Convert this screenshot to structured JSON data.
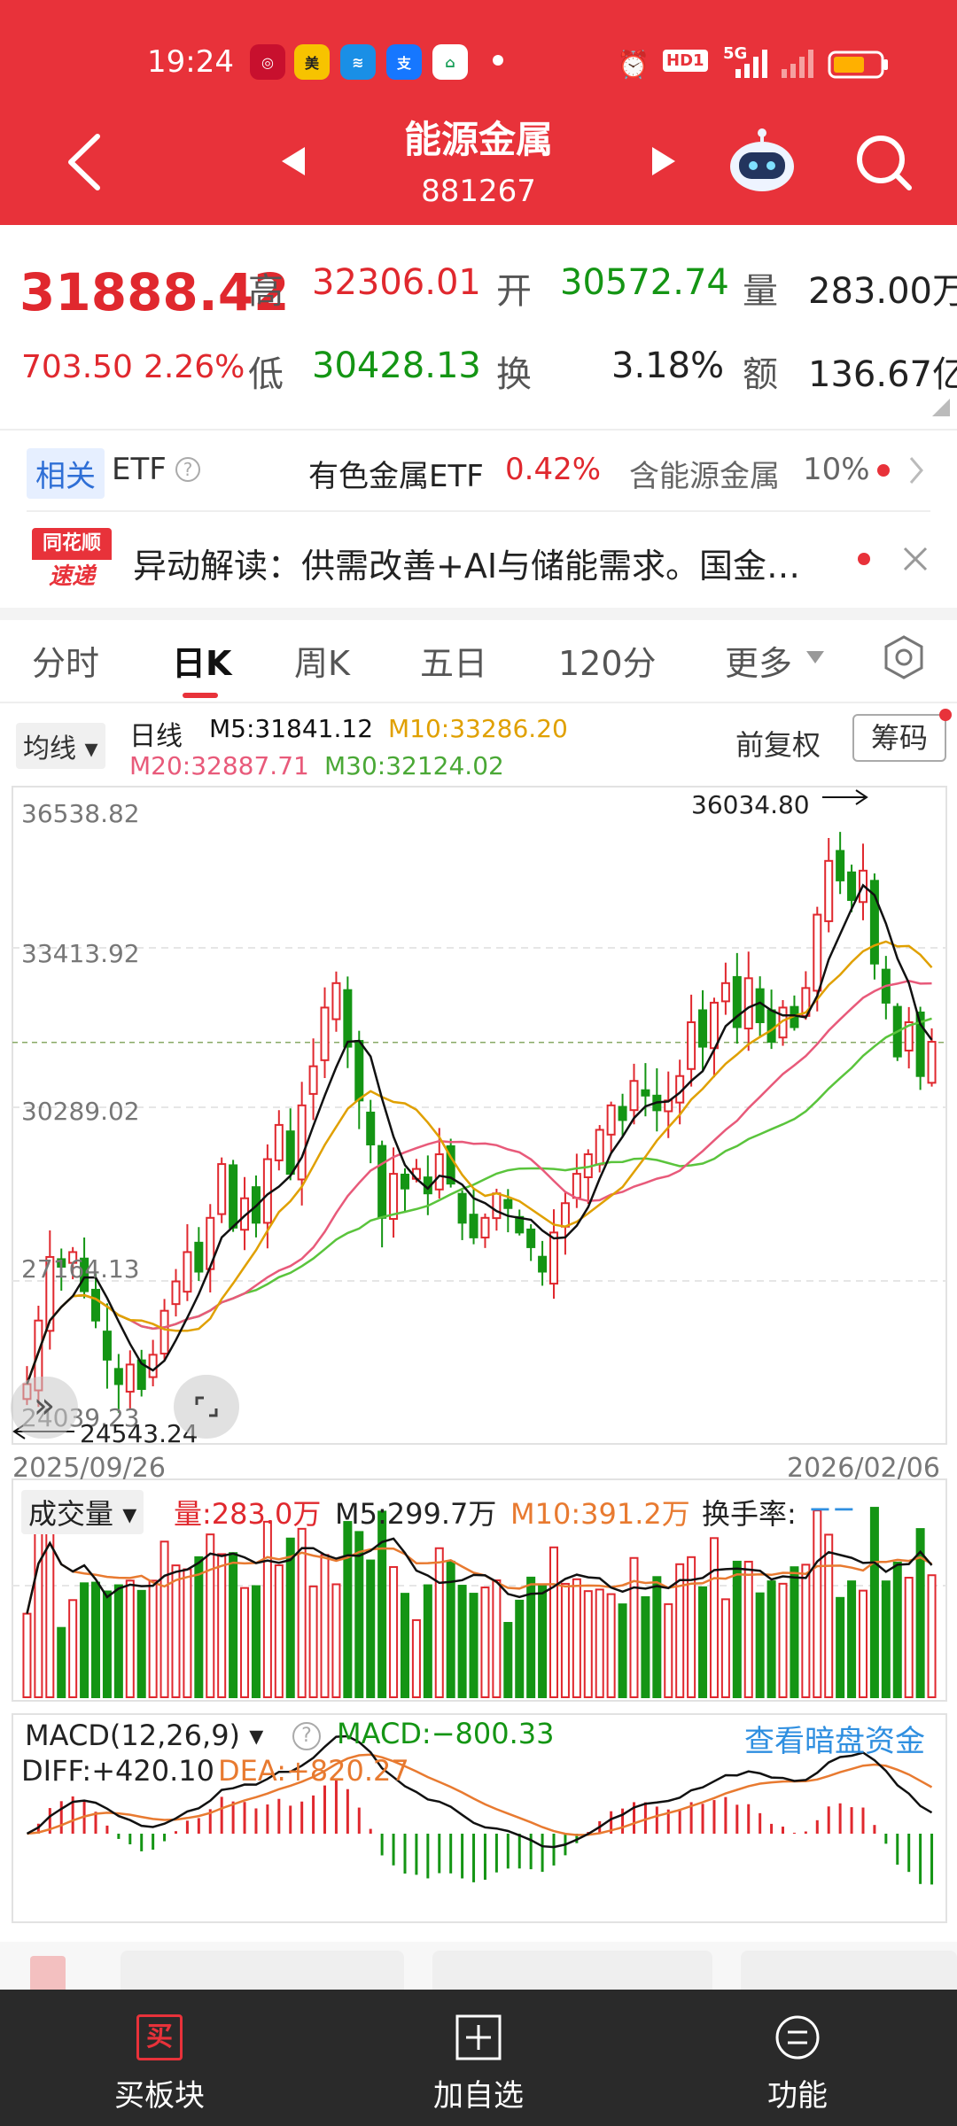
{
  "status": {
    "time": "19:24",
    "hd": "HD1",
    "net": "5G"
  },
  "header": {
    "title": "能源金属",
    "code": "881267"
  },
  "quote": {
    "price": "31888.42",
    "change": "703.50",
    "change_pct": "2.26%",
    "high_label": "高",
    "high": "32306.01",
    "open_label": "开",
    "open": "30572.74",
    "vol_label": "量",
    "volume": "283.00万",
    "low_label": "低",
    "low": "30428.13",
    "turn_label": "换",
    "turnover": "3.18%",
    "amt_label": "额",
    "amount": "136.67亿"
  },
  "etf": {
    "tag": "相关",
    "label": "ETF",
    "name": "有色金属ETF",
    "pct": "0.42%",
    "contain": "含能源金属",
    "contain_pct": "10%"
  },
  "news": {
    "logo_top": "同花顺",
    "logo_bottom": "速递",
    "text": "异动解读：供需改善+AI与储能需求。国金…"
  },
  "tabs": [
    "分时",
    "日K",
    "周K",
    "五日",
    "120分",
    "更多"
  ],
  "kline": {
    "ma_button": "均线",
    "period": "日线",
    "m5": "M5:31841.12",
    "m10": "M10:33286.20",
    "m20": "M20:32887.71",
    "m30": "M30:32124.02",
    "adjust": "前复权",
    "chips": "筹码",
    "y_labels": [
      "36538.82",
      "33413.92",
      "30289.02",
      "27164.13",
      "24039.23"
    ],
    "max_label": "36034.80",
    "min_label": "24543.24",
    "date_start": "2025/09/26",
    "date_end": "2026/02/06"
  },
  "volume": {
    "button": "成交量",
    "vol": "量:283.0万",
    "m5": "M5:299.7万",
    "m10": "M10:391.2万",
    "turn": "换手率:",
    "turn_val": "−−"
  },
  "macd": {
    "button": "MACD(12,26,9)",
    "macd": "MACD:−800.33",
    "link": "查看暗盘资金",
    "diff": "DIFF:+420.10",
    "dea": "DEA:+820.27"
  },
  "bottom": {
    "buy": "买板块",
    "add": "加自选",
    "func": "功能",
    "buy_icon_text": "买"
  },
  "colors": {
    "header_red": "#e8323a",
    "up_red": "#e0282e",
    "down_green": "#149514",
    "ma5": "#111111",
    "ma10": "#e0a000",
    "ma20": "#e85a7a",
    "ma30": "#5ac43c"
  },
  "chart_data": {
    "type": "candlestick",
    "ylim": [
      24039.23,
      36538.82
    ],
    "closes": [
      24900,
      26200,
      27500,
      27300,
      27600,
      26800,
      26200,
      25400,
      24900,
      25300,
      24800,
      25500,
      26400,
      27000,
      27600,
      27200,
      28300,
      29400,
      28100,
      28700,
      28200,
      29500,
      30200,
      29200,
      30600,
      31400,
      32600,
      33100,
      31800,
      30700,
      29800,
      28300,
      29200,
      28900,
      29300,
      28800,
      29600,
      29000,
      28200,
      27900,
      28300,
      28800,
      28500,
      28000,
      27700,
      27200,
      28000,
      28600,
      29200,
      29600,
      30100,
      30600,
      30300,
      31100,
      30800,
      30500,
      30700,
      31200,
      32300,
      31800,
      32700,
      33100,
      32200,
      33200,
      32300,
      31900,
      32600,
      32200,
      33000,
      34500,
      35600,
      35200,
      34800,
      35400,
      33500,
      32700,
      31600,
      32300,
      31200,
      31900
    ]
  }
}
